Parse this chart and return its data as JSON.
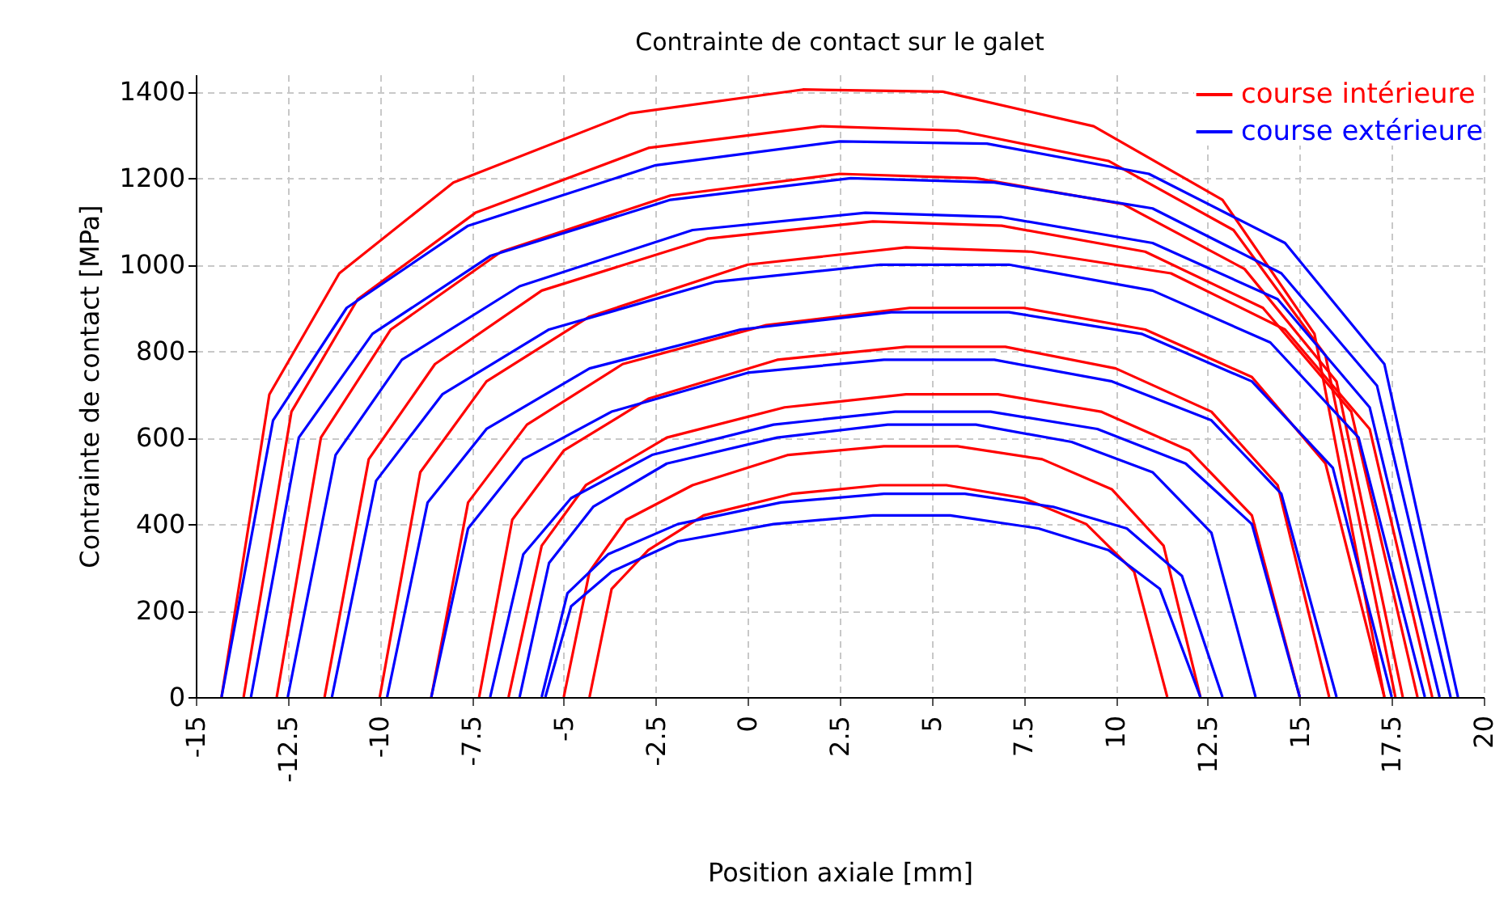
{
  "chart_data": {
    "type": "line",
    "title": "Contrainte de contact sur le galet",
    "xlabel": "Position axiale [mm]",
    "ylabel": "Contrainte de contact [MPa]",
    "xlim": [
      -15,
      20
    ],
    "ylim": [
      0,
      1440
    ],
    "xticks": [
      -15,
      -12.5,
      -10,
      -7.5,
      -5,
      -2.5,
      0,
      2.5,
      5,
      7.5,
      10,
      12.5,
      15,
      17.5,
      20
    ],
    "yticks": [
      0,
      200,
      400,
      600,
      800,
      1000,
      1200,
      1400
    ],
    "grid": true,
    "legend": "top right",
    "marker": "none",
    "line_style": "solid",
    "series": [
      {
        "name": "course intérieure",
        "color": "#ff0000",
        "x": [
          -14.3,
          -13.0,
          -11.1,
          -8.0,
          -3.2,
          1.5,
          5.3,
          9.4,
          12.9,
          15.4,
          17.3
        ],
        "values": [
          0,
          700,
          980,
          1190,
          1350,
          1405,
          1400,
          1320,
          1150,
          840,
          0
        ]
      },
      {
        "color": "#ff0000",
        "x": [
          -13.7,
          -12.4,
          -10.6,
          -7.4,
          -2.7,
          2.0,
          5.7,
          9.8,
          13.2,
          15.7,
          17.6
        ],
        "values": [
          0,
          660,
          920,
          1120,
          1270,
          1320,
          1310,
          1240,
          1080,
          790,
          0
        ]
      },
      {
        "color": "#ff0000",
        "x": [
          -12.8,
          -11.6,
          -9.7,
          -6.7,
          -2.1,
          2.5,
          6.2,
          10.2,
          13.5,
          16.0,
          17.8
        ],
        "values": [
          0,
          600,
          850,
          1030,
          1160,
          1210,
          1200,
          1140,
          990,
          730,
          0
        ]
      },
      {
        "color": "#ff0000",
        "x": [
          -11.5,
          -10.3,
          -8.5,
          -5.6,
          -1.1,
          3.4,
          6.9,
          10.8,
          14.0,
          16.4,
          18.2
        ],
        "values": [
          0,
          550,
          770,
          940,
          1060,
          1100,
          1090,
          1030,
          900,
          660,
          0
        ]
      },
      {
        "color": "#ff0000",
        "x": [
          -10.0,
          -8.9,
          -7.1,
          -4.3,
          0.0,
          4.3,
          7.7,
          11.5,
          14.6,
          16.9,
          18.6
        ],
        "values": [
          0,
          520,
          730,
          880,
          1000,
          1040,
          1030,
          980,
          850,
          620,
          0
        ]
      },
      {
        "color": "#ff0000",
        "x": [
          -8.6,
          -7.6,
          -6.0,
          -3.4,
          0.5,
          4.4,
          7.5,
          10.8,
          13.7,
          15.7,
          17.3
        ],
        "values": [
          0,
          450,
          630,
          770,
          860,
          900,
          900,
          850,
          740,
          540,
          0
        ]
      },
      {
        "color": "#ff0000",
        "x": [
          -7.3,
          -6.4,
          -5.0,
          -2.7,
          0.8,
          4.3,
          7.0,
          10.0,
          12.6,
          14.4,
          15.8
        ],
        "values": [
          0,
          410,
          570,
          690,
          780,
          810,
          810,
          760,
          660,
          490,
          0
        ]
      },
      {
        "color": "#ff0000",
        "x": [
          -6.5,
          -5.6,
          -4.4,
          -2.2,
          1.0,
          4.3,
          6.8,
          9.6,
          12.0,
          13.7,
          15.0
        ],
        "values": [
          0,
          350,
          490,
          600,
          670,
          700,
          700,
          660,
          570,
          420,
          0
        ]
      },
      {
        "color": "#ff0000",
        "x": [
          -5.0,
          -4.3,
          -3.3,
          -1.5,
          1.1,
          3.7,
          5.7,
          8.0,
          9.9,
          11.3,
          12.3
        ],
        "values": [
          0,
          290,
          410,
          490,
          560,
          580,
          580,
          550,
          480,
          350,
          0
        ]
      },
      {
        "color": "#ff0000",
        "x": [
          -4.3,
          -3.7,
          -2.7,
          -1.2,
          1.2,
          3.6,
          5.4,
          7.5,
          9.2,
          10.5,
          11.4
        ],
        "values": [
          0,
          250,
          340,
          420,
          470,
          490,
          490,
          460,
          400,
          290,
          0
        ]
      },
      {
        "name": "course extérieure",
        "color": "#0000ff",
        "x": [
          -14.3,
          -12.9,
          -10.9,
          -7.6,
          -2.5,
          2.5,
          6.5,
          10.9,
          14.6,
          17.3,
          19.3
        ],
        "values": [
          0,
          640,
          900,
          1090,
          1230,
          1285,
          1280,
          1210,
          1050,
          770,
          0
        ]
      },
      {
        "color": "#0000ff",
        "x": [
          -13.5,
          -12.2,
          -10.2,
          -7.0,
          -2.1,
          2.8,
          6.7,
          11.0,
          14.5,
          17.1,
          19.1
        ],
        "values": [
          0,
          600,
          840,
          1020,
          1150,
          1200,
          1190,
          1130,
          980,
          720,
          0
        ]
      },
      {
        "color": "#0000ff",
        "x": [
          -12.5,
          -11.2,
          -9.4,
          -6.2,
          -1.5,
          3.2,
          6.9,
          11.0,
          14.4,
          16.9,
          18.8
        ],
        "values": [
          0,
          560,
          780,
          950,
          1080,
          1120,
          1110,
          1050,
          920,
          670,
          0
        ]
      },
      {
        "color": "#0000ff",
        "x": [
          -11.3,
          -10.1,
          -8.3,
          -5.4,
          -0.9,
          3.6,
          7.1,
          11.0,
          14.2,
          16.6,
          18.4
        ],
        "values": [
          0,
          500,
          700,
          850,
          960,
          1000,
          1000,
          940,
          820,
          600,
          0
        ]
      },
      {
        "color": "#0000ff",
        "x": [
          -9.8,
          -8.7,
          -7.1,
          -4.3,
          -0.2,
          3.9,
          7.1,
          10.7,
          13.7,
          15.9,
          17.5
        ],
        "values": [
          0,
          450,
          620,
          760,
          850,
          890,
          890,
          840,
          730,
          530,
          0
        ]
      },
      {
        "color": "#0000ff",
        "x": [
          -8.6,
          -7.6,
          -6.1,
          -3.7,
          0.0,
          3.7,
          6.7,
          9.9,
          12.6,
          14.5,
          16.0
        ],
        "values": [
          0,
          390,
          550,
          660,
          750,
          780,
          780,
          730,
          640,
          470,
          0
        ]
      },
      {
        "color": "#0000ff",
        "x": [
          -7.0,
          -6.1,
          -4.8,
          -2.6,
          0.7,
          4.0,
          6.6,
          9.5,
          11.9,
          13.7,
          15.0
        ],
        "values": [
          0,
          330,
          460,
          560,
          630,
          660,
          660,
          620,
          540,
          400,
          0
        ]
      },
      {
        "color": "#0000ff",
        "x": [
          -6.2,
          -5.4,
          -4.2,
          -2.2,
          0.8,
          3.8,
          6.2,
          8.8,
          11.0,
          12.6,
          13.8
        ],
        "values": [
          0,
          310,
          440,
          540,
          600,
          630,
          630,
          590,
          520,
          380,
          0
        ]
      },
      {
        "color": "#0000ff",
        "x": [
          -5.6,
          -4.9,
          -3.8,
          -1.9,
          0.9,
          3.7,
          5.9,
          8.3,
          10.3,
          11.8,
          12.9
        ],
        "values": [
          0,
          240,
          330,
          400,
          450,
          470,
          470,
          440,
          390,
          280,
          0
        ]
      },
      {
        "color": "#0000ff",
        "x": [
          -5.5,
          -4.8,
          -3.7,
          -1.9,
          0.7,
          3.4,
          5.5,
          7.9,
          9.8,
          11.2,
          12.3
        ],
        "values": [
          0,
          210,
          290,
          360,
          400,
          420,
          420,
          390,
          340,
          250,
          0
        ]
      }
    ]
  }
}
